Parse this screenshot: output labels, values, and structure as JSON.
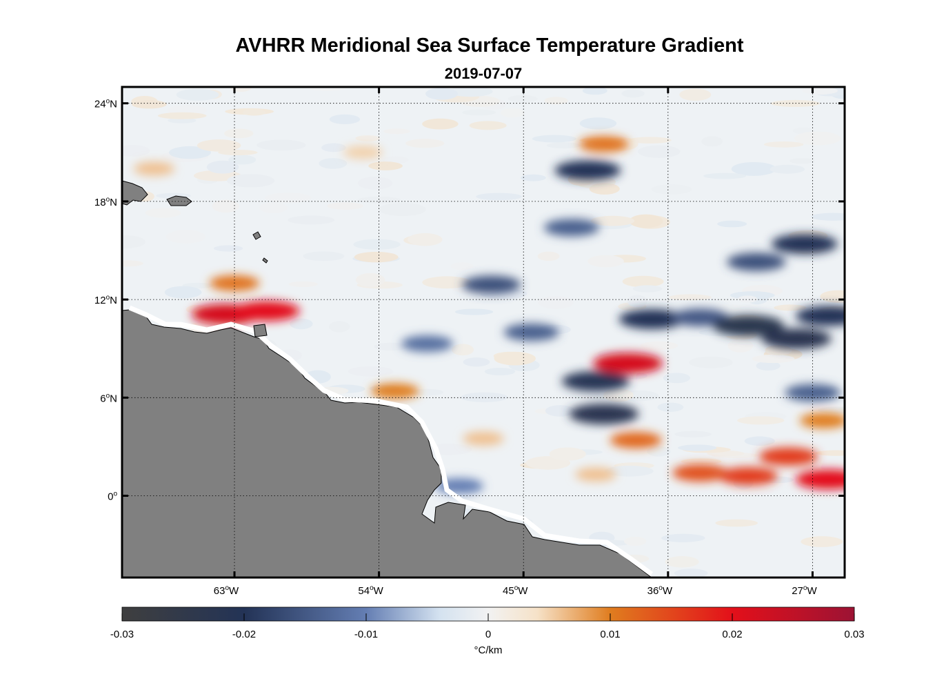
{
  "title": "AVHRR Meridional Sea Surface Temperature Gradient",
  "subtitle": "2019-07-07",
  "map": {
    "lat_labels": [
      {
        "deg": "24",
        "hem": "N",
        "lat": 24
      },
      {
        "deg": "18",
        "hem": "N",
        "lat": 18
      },
      {
        "deg": "12",
        "hem": "N",
        "lat": 12
      },
      {
        "deg": "6",
        "hem": "N",
        "lat": 6
      },
      {
        "deg": "0",
        "hem": "",
        "lat": 0
      }
    ],
    "lon_labels": [
      {
        "deg": "63",
        "hem": "W",
        "lon": -63
      },
      {
        "deg": "54",
        "hem": "W",
        "lon": -54
      },
      {
        "deg": "45",
        "hem": "W",
        "lon": -45
      },
      {
        "deg": "36",
        "hem": "W",
        "lon": -36
      },
      {
        "deg": "27",
        "hem": "W",
        "lon": -27
      }
    ],
    "extent": {
      "lon_min": -70,
      "lon_max": -25,
      "lat_min": -5,
      "lat_max": 25
    },
    "land_color": "#808080",
    "ocean_base_color": "#eef2f5",
    "anomalies": [
      {
        "lon": -63.5,
        "lat": 11.1,
        "value": 0.022
      },
      {
        "lon": -61.0,
        "lat": 11.3,
        "value": 0.02
      },
      {
        "lon": -63.0,
        "lat": 13.0,
        "value": 0.011
      },
      {
        "lon": -40.0,
        "lat": 21.5,
        "value": 0.011
      },
      {
        "lon": -41.0,
        "lat": 19.9,
        "value": -0.02
      },
      {
        "lon": -38.5,
        "lat": 8.1,
        "value": 0.022
      },
      {
        "lon": -40.5,
        "lat": 7.0,
        "value": -0.021
      },
      {
        "lon": -40.0,
        "lat": 5.0,
        "value": -0.022
      },
      {
        "lon": -37.0,
        "lat": 10.8,
        "value": -0.02
      },
      {
        "lon": -34.0,
        "lat": 10.9,
        "value": -0.015
      },
      {
        "lon": -31.0,
        "lat": 10.4,
        "value": -0.023
      },
      {
        "lon": -28.0,
        "lat": 9.6,
        "value": -0.022
      },
      {
        "lon": -26.0,
        "lat": 11.0,
        "value": -0.02
      },
      {
        "lon": -27.5,
        "lat": 15.4,
        "value": -0.02
      },
      {
        "lon": -30.5,
        "lat": 14.3,
        "value": -0.016
      },
      {
        "lon": -44.5,
        "lat": 10.0,
        "value": -0.014
      },
      {
        "lon": -42.0,
        "lat": 16.4,
        "value": -0.014
      },
      {
        "lon": -47.0,
        "lat": 12.9,
        "value": -0.016
      },
      {
        "lon": -51.0,
        "lat": 9.3,
        "value": -0.012
      },
      {
        "lon": -34.0,
        "lat": 1.4,
        "value": 0.014
      },
      {
        "lon": -31.0,
        "lat": 1.2,
        "value": 0.016
      },
      {
        "lon": -28.5,
        "lat": 2.4,
        "value": 0.016
      },
      {
        "lon": -26.0,
        "lat": 1.0,
        "value": 0.02
      },
      {
        "lon": -26.3,
        "lat": 4.6,
        "value": 0.01
      },
      {
        "lon": -53.0,
        "lat": 6.4,
        "value": 0.01
      },
      {
        "lon": -47.5,
        "lat": 3.5,
        "value": 0.006
      },
      {
        "lon": -49.0,
        "lat": 0.6,
        "value": -0.01
      },
      {
        "lon": -40.5,
        "lat": 1.3,
        "value": 0.006
      },
      {
        "lon": -27.0,
        "lat": 6.3,
        "value": -0.014
      },
      {
        "lon": -38.0,
        "lat": 3.4,
        "value": 0.012
      },
      {
        "lon": -55.0,
        "lat": 21.0,
        "value": 0.005
      },
      {
        "lon": -68.0,
        "lat": 20.0,
        "value": 0.006
      }
    ]
  },
  "colorbar": {
    "min": -0.03,
    "max": 0.03,
    "tick_labels": [
      "-0.03",
      "-0.02",
      "-0.01",
      "0",
      "0.01",
      "0.02",
      "0.03"
    ],
    "tick_values": [
      -0.03,
      -0.02,
      -0.01,
      0,
      0.01,
      0.02,
      0.03
    ],
    "units": "°C/km",
    "stops": [
      {
        "v": -0.03,
        "color": "#3f3f3f"
      },
      {
        "v": -0.02,
        "color": "#233356"
      },
      {
        "v": -0.01,
        "color": "#647eb3"
      },
      {
        "v": -0.004,
        "color": "#d4e2f0"
      },
      {
        "v": 0,
        "color": "#f2f2f2"
      },
      {
        "v": 0.004,
        "color": "#f6e2c8"
      },
      {
        "v": 0.01,
        "color": "#e07d1f"
      },
      {
        "v": 0.02,
        "color": "#e3101a"
      },
      {
        "v": 0.03,
        "color": "#9c1334"
      }
    ]
  }
}
